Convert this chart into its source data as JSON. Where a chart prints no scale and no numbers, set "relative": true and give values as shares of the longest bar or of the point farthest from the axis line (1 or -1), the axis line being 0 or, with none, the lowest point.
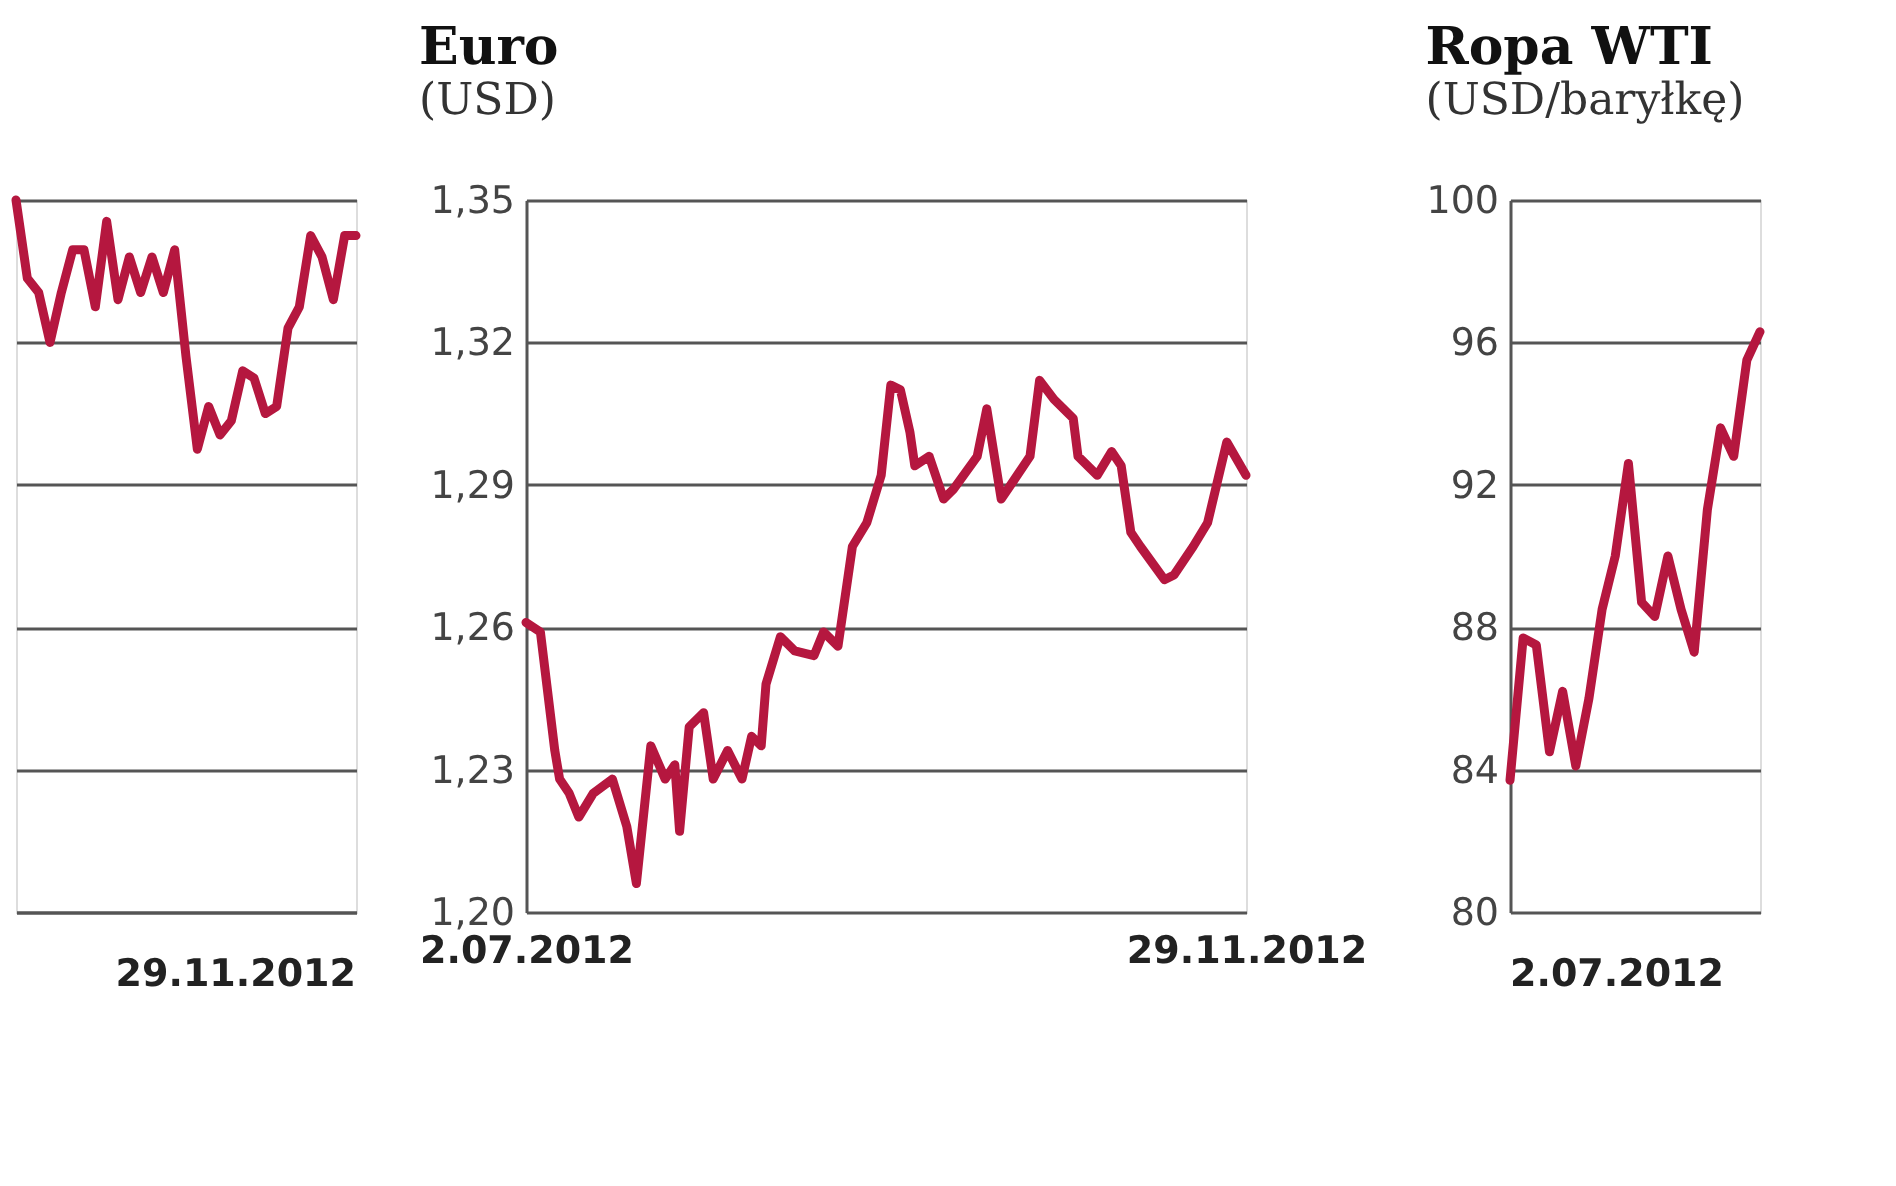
{
  "chart_data": [
    {
      "type": "line",
      "relative": true,
      "grid": "y",
      "line_style": "solid",
      "marker": "none",
      "categories": [
        null,
        null,
        null,
        null,
        null,
        null,
        null,
        null,
        null,
        null,
        null,
        null,
        null,
        null,
        null,
        null,
        null,
        null,
        null,
        null,
        null,
        null,
        null,
        null,
        null,
        null,
        null,
        null,
        null,
        null,
        null
      ],
      "annotations": [
        "29.11.2012"
      ],
      "series": [
        {
          "color": "#b5173f",
          "values": [
            1.0,
            0.89,
            0.87,
            0.8,
            0.87,
            0.93,
            0.93,
            0.85,
            0.97,
            0.86,
            0.92,
            0.87,
            0.92,
            0.87,
            0.93,
            0.78,
            0.65,
            0.71,
            0.67,
            0.69,
            0.76,
            0.75,
            0.7,
            0.71,
            0.82,
            0.85,
            0.95,
            0.92,
            0.86,
            0.95,
            0.95
          ]
        }
      ]
    },
    {
      "type": "line",
      "title": "Euro",
      "subtitle": "(USD)",
      "grid": "y",
      "line_style": "solid",
      "marker": "none",
      "xlim": [
        "2012-07-02",
        "2012-11-29"
      ],
      "xticks": [
        {
          "value": "2012-07-02",
          "label": "2.07.2012"
        },
        {
          "value": "2012-11-29",
          "label": "29.11.2012"
        }
      ],
      "ylim": [
        1.2,
        1.35
      ],
      "yticks": [
        {
          "value": 1.2,
          "label": "1,20"
        },
        {
          "value": 1.23,
          "label": "1,23"
        },
        {
          "value": 1.26,
          "label": "1,26"
        },
        {
          "value": 1.29,
          "label": "1,29"
        },
        {
          "value": 1.32,
          "label": "1,32"
        },
        {
          "value": 1.35,
          "label": "1,35"
        }
      ],
      "x": [
        "2012-07-02",
        "2012-07-05",
        "2012-07-08",
        "2012-07-09",
        "2012-07-11",
        "2012-07-13",
        "2012-07-16",
        "2012-07-20",
        "2012-07-23",
        "2012-07-25",
        "2012-07-28",
        "2012-07-31",
        "2012-08-02",
        "2012-08-03",
        "2012-08-05",
        "2012-08-08",
        "2012-08-10",
        "2012-08-13",
        "2012-08-16",
        "2012-08-18",
        "2012-08-20",
        "2012-08-21",
        "2012-08-24",
        "2012-08-27",
        "2012-08-31",
        "2012-09-02",
        "2012-09-05",
        "2012-09-08",
        "2012-09-11",
        "2012-09-14",
        "2012-09-16",
        "2012-09-18",
        "2012-09-20",
        "2012-09-21",
        "2012-09-24",
        "2012-09-27",
        "2012-09-29",
        "2012-10-04",
        "2012-10-06",
        "2012-10-09",
        "2012-10-15",
        "2012-10-17",
        "2012-10-20",
        "2012-10-24",
        "2012-10-25",
        "2012-10-29",
        "2012-11-01",
        "2012-11-03",
        "2012-11-05",
        "2012-11-07",
        "2012-11-12",
        "2012-11-14",
        "2012-11-18",
        "2012-11-21",
        "2012-11-25",
        "2012-11-29"
      ],
      "series": [
        {
          "color": "#b5173f",
          "values": [
            1.261,
            1.259,
            1.234,
            1.228,
            1.225,
            1.22,
            1.225,
            1.228,
            1.218,
            1.206,
            1.235,
            1.228,
            1.231,
            1.217,
            1.239,
            1.242,
            1.228,
            1.234,
            1.228,
            1.237,
            1.235,
            1.248,
            1.258,
            1.255,
            1.254,
            1.259,
            1.256,
            1.277,
            1.282,
            1.292,
            1.311,
            1.31,
            1.301,
            1.294,
            1.296,
            1.287,
            1.289,
            1.296,
            1.306,
            1.287,
            1.296,
            1.312,
            1.308,
            1.304,
            1.296,
            1.292,
            1.297,
            1.294,
            1.28,
            1.277,
            1.27,
            1.271,
            1.277,
            1.282,
            1.299,
            1.292
          ]
        }
      ]
    },
    {
      "type": "line",
      "title": "Ropa WTI",
      "subtitle": "(USD/baryłkę)",
      "grid": "y",
      "line_style": "solid",
      "marker": "none",
      "ylim": [
        80,
        100
      ],
      "yticks": [
        80,
        84,
        88,
        92,
        96,
        100
      ],
      "categories": [
        null,
        null,
        null,
        null,
        null,
        null,
        null,
        null,
        null,
        null,
        null,
        null,
        null,
        null,
        null,
        null,
        null,
        null,
        null,
        null
      ],
      "annotations": [
        "2.07.2012"
      ],
      "series": [
        {
          "color": "#b5173f",
          "values": [
            83.7,
            87.7,
            87.5,
            84.5,
            86.2,
            84.1,
            86.0,
            88.5,
            90.0,
            92.6,
            88.7,
            88.3,
            90.0,
            88.5,
            87.3,
            91.3,
            93.6,
            92.8,
            95.5,
            96.3
          ]
        }
      ]
    }
  ]
}
